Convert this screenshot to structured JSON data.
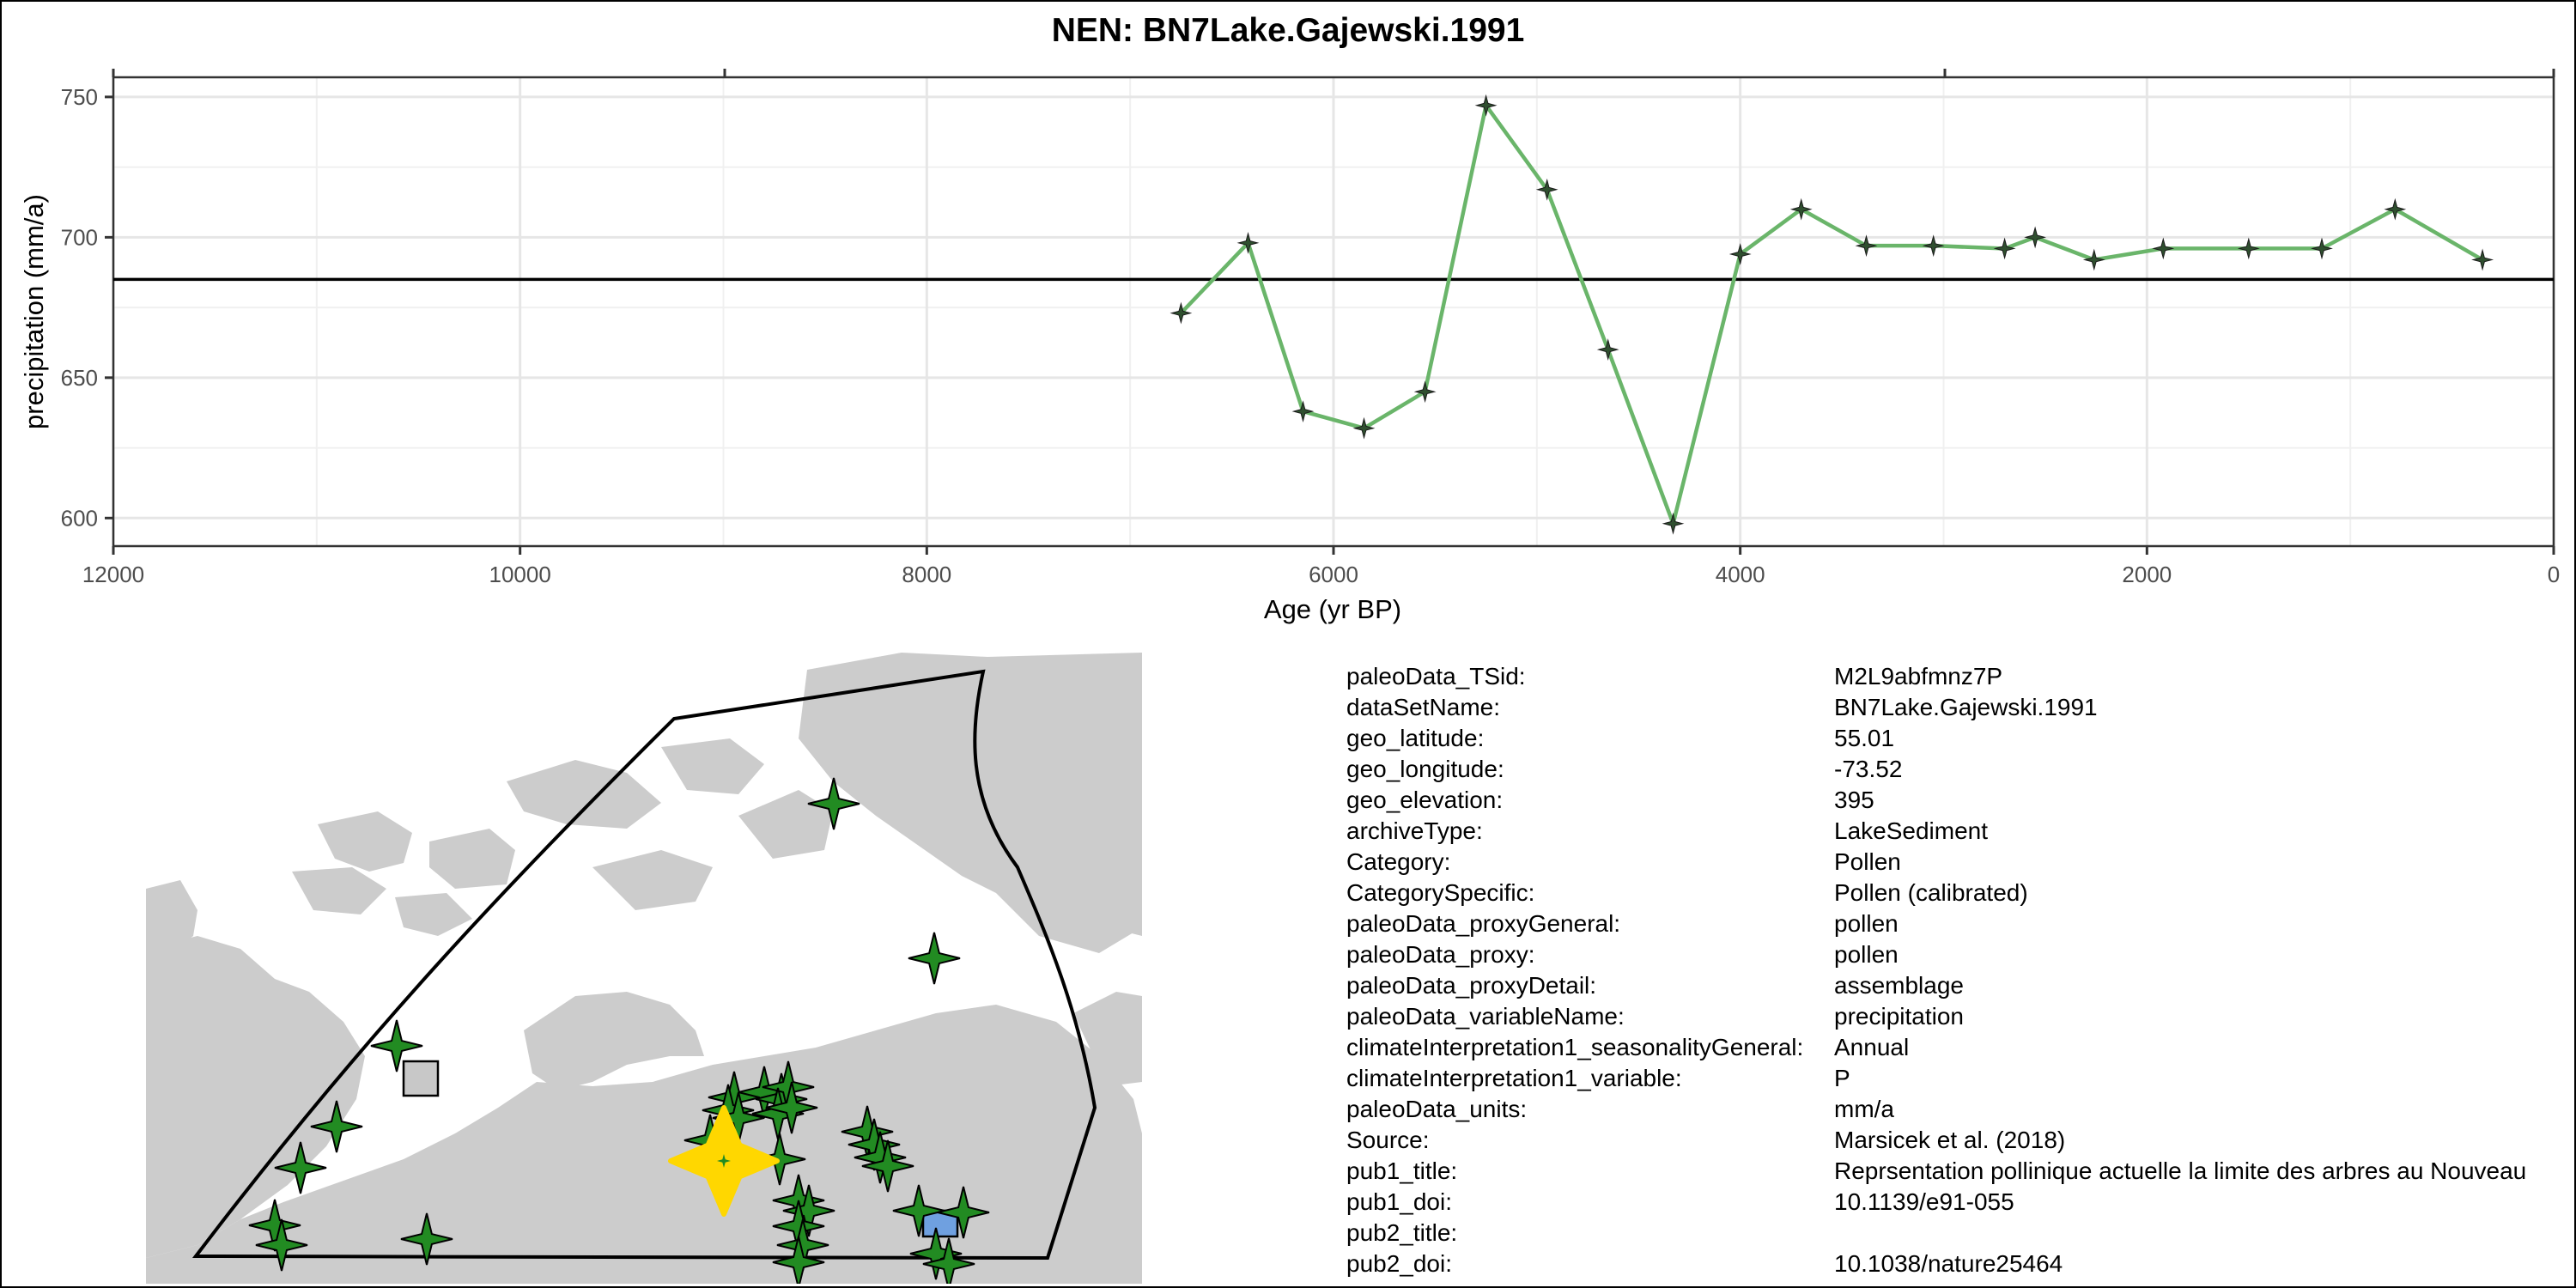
{
  "chart_data": {
    "type": "line",
    "title": "NEN: BN7Lake.Gajewski.1991",
    "xlabel": "Age (yr BP)",
    "ylabel": "precipitation (mm/a)",
    "xlim": [
      12000,
      0
    ],
    "x_reversed": true,
    "ylim": [
      590,
      757
    ],
    "x_ticks": [
      12000,
      10000,
      8000,
      6000,
      4000,
      2000,
      0
    ],
    "y_ticks": [
      600,
      650,
      700,
      750
    ],
    "grid": true,
    "reference_line": 685,
    "series": [
      {
        "color": "#6ab56a",
        "marker_color": "#2f4f2f",
        "points": [
          {
            "x": 6750,
            "y": 673
          },
          {
            "x": 6420,
            "y": 698
          },
          {
            "x": 6150,
            "y": 638
          },
          {
            "x": 5850,
            "y": 632
          },
          {
            "x": 5550,
            "y": 645
          },
          {
            "x": 5250,
            "y": 747
          },
          {
            "x": 4950,
            "y": 717
          },
          {
            "x": 4650,
            "y": 660
          },
          {
            "x": 4330,
            "y": 598
          },
          {
            "x": 4000,
            "y": 694
          },
          {
            "x": 3700,
            "y": 710
          },
          {
            "x": 3380,
            "y": 697
          },
          {
            "x": 3050,
            "y": 697
          },
          {
            "x": 2700,
            "y": 696
          },
          {
            "x": 2550,
            "y": 700
          },
          {
            "x": 2260,
            "y": 692
          },
          {
            "x": 1920,
            "y": 696
          },
          {
            "x": 1500,
            "y": 696
          },
          {
            "x": 1140,
            "y": 696
          },
          {
            "x": 780,
            "y": 710
          },
          {
            "x": 350,
            "y": 692
          }
        ]
      }
    ]
  },
  "metadata": [
    {
      "key": "paleoData_TSid:",
      "value": "M2L9abfmnz7P"
    },
    {
      "key": "dataSetName:",
      "value": "BN7Lake.Gajewski.1991"
    },
    {
      "key": "geo_latitude:",
      "value": "55.01"
    },
    {
      "key": "geo_longitude:",
      "value": "-73.52"
    },
    {
      "key": "geo_elevation:",
      "value": "395"
    },
    {
      "key": "archiveType:",
      "value": "LakeSediment"
    },
    {
      "key": "Category:",
      "value": "Pollen"
    },
    {
      "key": "CategorySpecific:",
      "value": "Pollen (calibrated)"
    },
    {
      "key": "paleoData_proxyGeneral:",
      "value": "pollen"
    },
    {
      "key": "paleoData_proxy:",
      "value": "pollen"
    },
    {
      "key": "paleoData_proxyDetail:",
      "value": "assemblage"
    },
    {
      "key": "paleoData_variableName:",
      "value": "precipitation"
    },
    {
      "key": "climateInterpretation1_seasonalityGeneral:",
      "value": "Annual"
    },
    {
      "key": "climateInterpretation1_variable:",
      "value": "P"
    },
    {
      "key": "paleoData_units:",
      "value": "mm/a"
    },
    {
      "key": "Source:",
      "value": "Marsicek et al. (2018)"
    },
    {
      "key": "pub1_title:",
      "value": "Reprsentation pollinique actuelle    la limite des arbres au Nouveau"
    },
    {
      "key": "pub1_doi:",
      "value": "10.1139/e91-055"
    },
    {
      "key": "pub2_title:",
      "value": ""
    },
    {
      "key": "pub2_doi:",
      "value": "10.1038/nature25464"
    }
  ],
  "map": {
    "land_color": "#cccccc",
    "region_outline_color": "#000000",
    "site_marker_color": "#228b22",
    "highlight_marker_color": "#ffd700",
    "square_marker_color": "#c8c8c8",
    "blue_marker_color": "#6fa0e0"
  }
}
